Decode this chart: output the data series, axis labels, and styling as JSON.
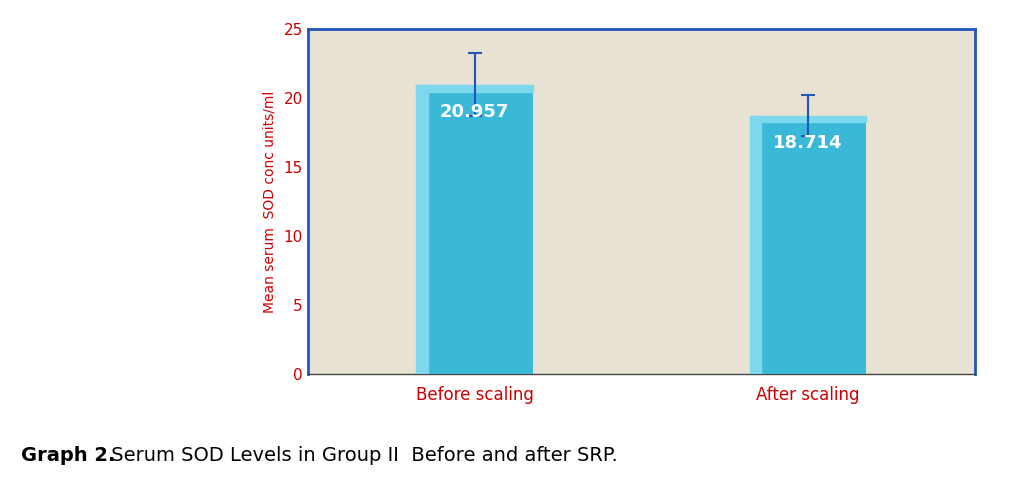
{
  "categories": [
    "Before scaling",
    "After scaling"
  ],
  "values": [
    20.957,
    18.714
  ],
  "errors": [
    2.3,
    1.5
  ],
  "bar_color": "#3ab8d8",
  "bar_highlight": "#7dd8ee",
  "bar_width": 0.35,
  "ylabel": "Mean serum  SOD conc units/ml",
  "ylabel_color": "#cc0000",
  "xlabel_color": "#cc0000",
  "ytick_color": "#cc0000",
  "ylim": [
    0,
    25
  ],
  "yticks": [
    0,
    5,
    10,
    15,
    20,
    25
  ],
  "value_labels": [
    "20.957",
    "18.714"
  ],
  "value_label_color": "#ffffff",
  "value_label_fontsize": 13,
  "xlabel_fontsize": 12,
  "ylabel_fontsize": 10,
  "title_bold": "Graph 2.",
  "title_normal": " Serum SOD Levels in Group II  Before and after SRP.",
  "plot_bg_color": "#e8e2d4",
  "border_color": "#2255bb",
  "error_bar_color": "#2255bb",
  "error_capsize": 5,
  "caption_fontsize": 14
}
